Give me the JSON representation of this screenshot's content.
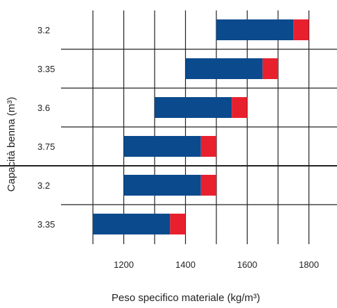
{
  "chart_data": {
    "type": "bar",
    "orientation": "horizontal",
    "stacked": true,
    "title": "",
    "xlabel": "Peso specifico materiale (kg/m³)",
    "ylabel": "Capacità benna (m³)",
    "xlim": [
      1000,
      1900
    ],
    "xticks": [
      1100,
      1200,
      1300,
      1400,
      1500,
      1600,
      1700,
      1800
    ],
    "xtick_labels": [
      "1200",
      "1400",
      "1600",
      "1800"
    ],
    "labeled_xticks": [
      1200,
      1400,
      1600,
      1800
    ],
    "grid": true,
    "legend": "none",
    "colors": {
      "base": "#0b4a8d",
      "extension": "#e8202e",
      "grid": "#222222"
    },
    "categories": [
      "3.2",
      "3.35",
      "3.6",
      "3.75",
      "3.2",
      "3.35"
    ],
    "group_separator_after_index": 3,
    "bars": [
      {
        "category": "3.2",
        "start": 1500,
        "end": 1750,
        "ext_end": 1800
      },
      {
        "category": "3.35",
        "start": 1400,
        "end": 1650,
        "ext_end": 1700
      },
      {
        "category": "3.6",
        "start": 1300,
        "end": 1550,
        "ext_end": 1600
      },
      {
        "category": "3.75",
        "start": 1200,
        "end": 1450,
        "ext_end": 1500
      },
      {
        "category": "3.2",
        "start": 1200,
        "end": 1450,
        "ext_end": 1500
      },
      {
        "category": "3.35",
        "start": 1100,
        "end": 1350,
        "ext_end": 1400
      }
    ]
  }
}
